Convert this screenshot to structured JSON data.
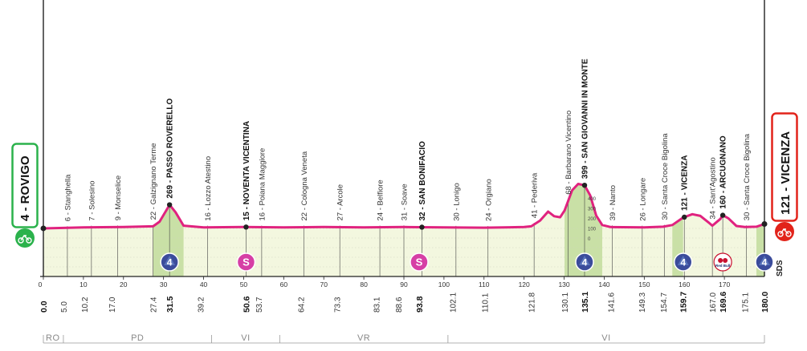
{
  "start": {
    "label": "4 - ROVIGO",
    "color": "#2bb24c"
  },
  "finish": {
    "label": "121 - VICENZA",
    "color": "#e2231a"
  },
  "sds_label": "SDS",
  "colors": {
    "profile": "#e0227f",
    "fill": "#f3f7df",
    "climb": "#c9e0a6",
    "sprint": "#d63fa5",
    "kom": "#3b4c9b"
  },
  "profile": {
    "total_km": 180.0,
    "points": [
      [
        0,
        1.2
      ],
      [
        10,
        1.5
      ],
      [
        20,
        1.6
      ],
      [
        27.4,
        1.8
      ],
      [
        29,
        3.2
      ],
      [
        31.5,
        8.2
      ],
      [
        33,
        6.0
      ],
      [
        35,
        2.0
      ],
      [
        40,
        1.5
      ],
      [
        50,
        1.6
      ],
      [
        60,
        1.5
      ],
      [
        70,
        1.6
      ],
      [
        80,
        1.5
      ],
      [
        90,
        1.6
      ],
      [
        100,
        1.5
      ],
      [
        110,
        1.4
      ],
      [
        120,
        1.6
      ],
      [
        121.8,
        1.8
      ],
      [
        124,
        3.5
      ],
      [
        126,
        6.2
      ],
      [
        127.5,
        4.8
      ],
      [
        129,
        4.5
      ],
      [
        130.1,
        6.5
      ],
      [
        132,
        12.5
      ],
      [
        133.5,
        14.4
      ],
      [
        135.1,
        14.0
      ],
      [
        136.5,
        11.0
      ],
      [
        138,
        5.0
      ],
      [
        139.5,
        2.2
      ],
      [
        141.6,
        1.6
      ],
      [
        150,
        1.5
      ],
      [
        154.7,
        1.7
      ],
      [
        157,
        2.2
      ],
      [
        159.7,
        4.4
      ],
      [
        162,
        5.4
      ],
      [
        164,
        4.9
      ],
      [
        166,
        3.0
      ],
      [
        167,
        2.0
      ],
      [
        169,
        4.0
      ],
      [
        169.6,
        5.1
      ],
      [
        171,
        4.2
      ],
      [
        173,
        1.9
      ],
      [
        175.1,
        1.6
      ],
      [
        178,
        1.7
      ],
      [
        180,
        2.5
      ]
    ],
    "climbs": [
      [
        27.4,
        35
      ],
      [
        130.1,
        139.5
      ],
      [
        157,
        159.7
      ],
      [
        178,
        180
      ]
    ],
    "vertical_ticks": [
      "400",
      "300",
      "200",
      "100",
      "0"
    ],
    "axis_ticks": [
      "0",
      "10",
      "20",
      "30",
      "40",
      "50",
      "60",
      "70",
      "80",
      "90",
      "100",
      "110",
      "120",
      "130",
      "140",
      "150",
      "160",
      "170"
    ]
  },
  "places": [
    {
      "km": 6,
      "label": "6 - Stanghella",
      "bold": false
    },
    {
      "km": 12,
      "label": "7 - Solesino",
      "bold": false
    },
    {
      "km": 18.5,
      "label": "9 - Monselice",
      "bold": false
    },
    {
      "km": 27.4,
      "label": "22 - Galzignano Terme",
      "bold": false
    },
    {
      "km": 31.5,
      "label": "269 - PASSO ROVERELLO",
      "bold": true
    },
    {
      "km": 41,
      "label": "16 - Lozzo Atestino",
      "bold": false
    },
    {
      "km": 50.6,
      "label": "15 - NOVENTA VICENTINA",
      "bold": true
    },
    {
      "km": 54.5,
      "label": "16 - Poiana Maggiore",
      "bold": false
    },
    {
      "km": 65,
      "label": "22 - Cologna Veneta",
      "bold": false
    },
    {
      "km": 74,
      "label": "27 - Arcole",
      "bold": false
    },
    {
      "km": 84,
      "label": "24 - Belfiore",
      "bold": false
    },
    {
      "km": 90,
      "label": "31 - Soave",
      "bold": false
    },
    {
      "km": 94.5,
      "label": "32 - SAN BONIFACIO",
      "bold": true
    },
    {
      "km": 103,
      "label": "30 - Lonigo",
      "bold": false
    },
    {
      "km": 111,
      "label": "24 - Orgiano",
      "bold": false
    },
    {
      "km": 122.5,
      "label": "41 - Pederiva",
      "bold": false
    },
    {
      "km": 131,
      "label": "68 - Barbarano Vicentino",
      "bold": false
    },
    {
      "km": 135.1,
      "label": "399 - SAN GIOVANNI IN MONTE",
      "bold": true
    },
    {
      "km": 142,
      "label": "39 - Nanto",
      "bold": false
    },
    {
      "km": 149.5,
      "label": "26 - Longare",
      "bold": false
    },
    {
      "km": 155,
      "label": "30 - Santa Croce Bigolina",
      "bold": false
    },
    {
      "km": 160,
      "label": "121 - VICENZA",
      "bold": true
    },
    {
      "km": 167,
      "label": "34 - Sant'Agostino",
      "bold": false
    },
    {
      "km": 169.6,
      "label": "160 - ARCUGNANO",
      "bold": true
    },
    {
      "km": 175.5,
      "label": "30 - Santa Croce Bigolina",
      "bold": false
    }
  ],
  "distances": [
    {
      "km": 0,
      "label": "0.0",
      "bold": true
    },
    {
      "km": 5.0,
      "label": "5.0",
      "bold": false
    },
    {
      "km": 10.2,
      "label": "10.2",
      "bold": false
    },
    {
      "km": 17.0,
      "label": "17.0",
      "bold": false
    },
    {
      "km": 27.4,
      "label": "27.4",
      "bold": false
    },
    {
      "km": 31.5,
      "label": "31.5",
      "bold": true
    },
    {
      "km": 39.2,
      "label": "39.2",
      "bold": false
    },
    {
      "km": 50.6,
      "label": "50.6",
      "bold": true
    },
    {
      "km": 53.7,
      "label": "53.7",
      "bold": false
    },
    {
      "km": 64.2,
      "label": "64.2",
      "bold": false
    },
    {
      "km": 73.3,
      "label": "73.3",
      "bold": false
    },
    {
      "km": 83.1,
      "label": "83.1",
      "bold": false
    },
    {
      "km": 88.6,
      "label": "88.6",
      "bold": false
    },
    {
      "km": 93.8,
      "label": "93.8",
      "bold": true
    },
    {
      "km": 102.1,
      "label": "102.1",
      "bold": false
    },
    {
      "km": 110.1,
      "label": "110.1",
      "bold": false
    },
    {
      "km": 121.8,
      "label": "121.8",
      "bold": false
    },
    {
      "km": 130.1,
      "label": "130.1",
      "bold": false
    },
    {
      "km": 135.1,
      "label": "135.1",
      "bold": true
    },
    {
      "km": 141.6,
      "label": "141.6",
      "bold": false
    },
    {
      "km": 149.3,
      "label": "149.3",
      "bold": false
    },
    {
      "km": 154.7,
      "label": "154.7",
      "bold": false
    },
    {
      "km": 159.7,
      "label": "159.7",
      "bold": true
    },
    {
      "km": 167.0,
      "label": "167.0",
      "bold": false
    },
    {
      "km": 169.6,
      "label": "169.6",
      "bold": true
    },
    {
      "km": 175.1,
      "label": "175.1",
      "bold": false
    },
    {
      "km": 180.0,
      "label": "180.0",
      "bold": true
    }
  ],
  "markers": [
    {
      "km": 31.5,
      "type": "kom",
      "label": "4",
      "icon": "kom-4-icon"
    },
    {
      "km": 50.6,
      "type": "sprint",
      "label": "S",
      "icon": "sprint-icon"
    },
    {
      "km": 93.8,
      "type": "sprint",
      "label": "S",
      "icon": "sprint-icon"
    },
    {
      "km": 135.1,
      "type": "kom",
      "label": "4",
      "icon": "kom-4-icon"
    },
    {
      "km": 159.7,
      "type": "kom",
      "label": "4",
      "icon": "kom-4-icon"
    },
    {
      "km": 169.6,
      "type": "redbull",
      "label": "Red Bull",
      "icon": "redbull-km-icon"
    },
    {
      "km": 180.0,
      "type": "kom",
      "label": "4",
      "icon": "kom-4-icon"
    }
  ],
  "provinces": [
    {
      "label": "RO",
      "from": 0,
      "to": 5
    },
    {
      "label": "PD",
      "from": 5,
      "to": 42
    },
    {
      "label": "VI",
      "from": 42,
      "to": 59
    },
    {
      "label": "VR",
      "from": 59,
      "to": 101
    },
    {
      "label": "VI",
      "from": 101,
      "to": 180
    }
  ]
}
